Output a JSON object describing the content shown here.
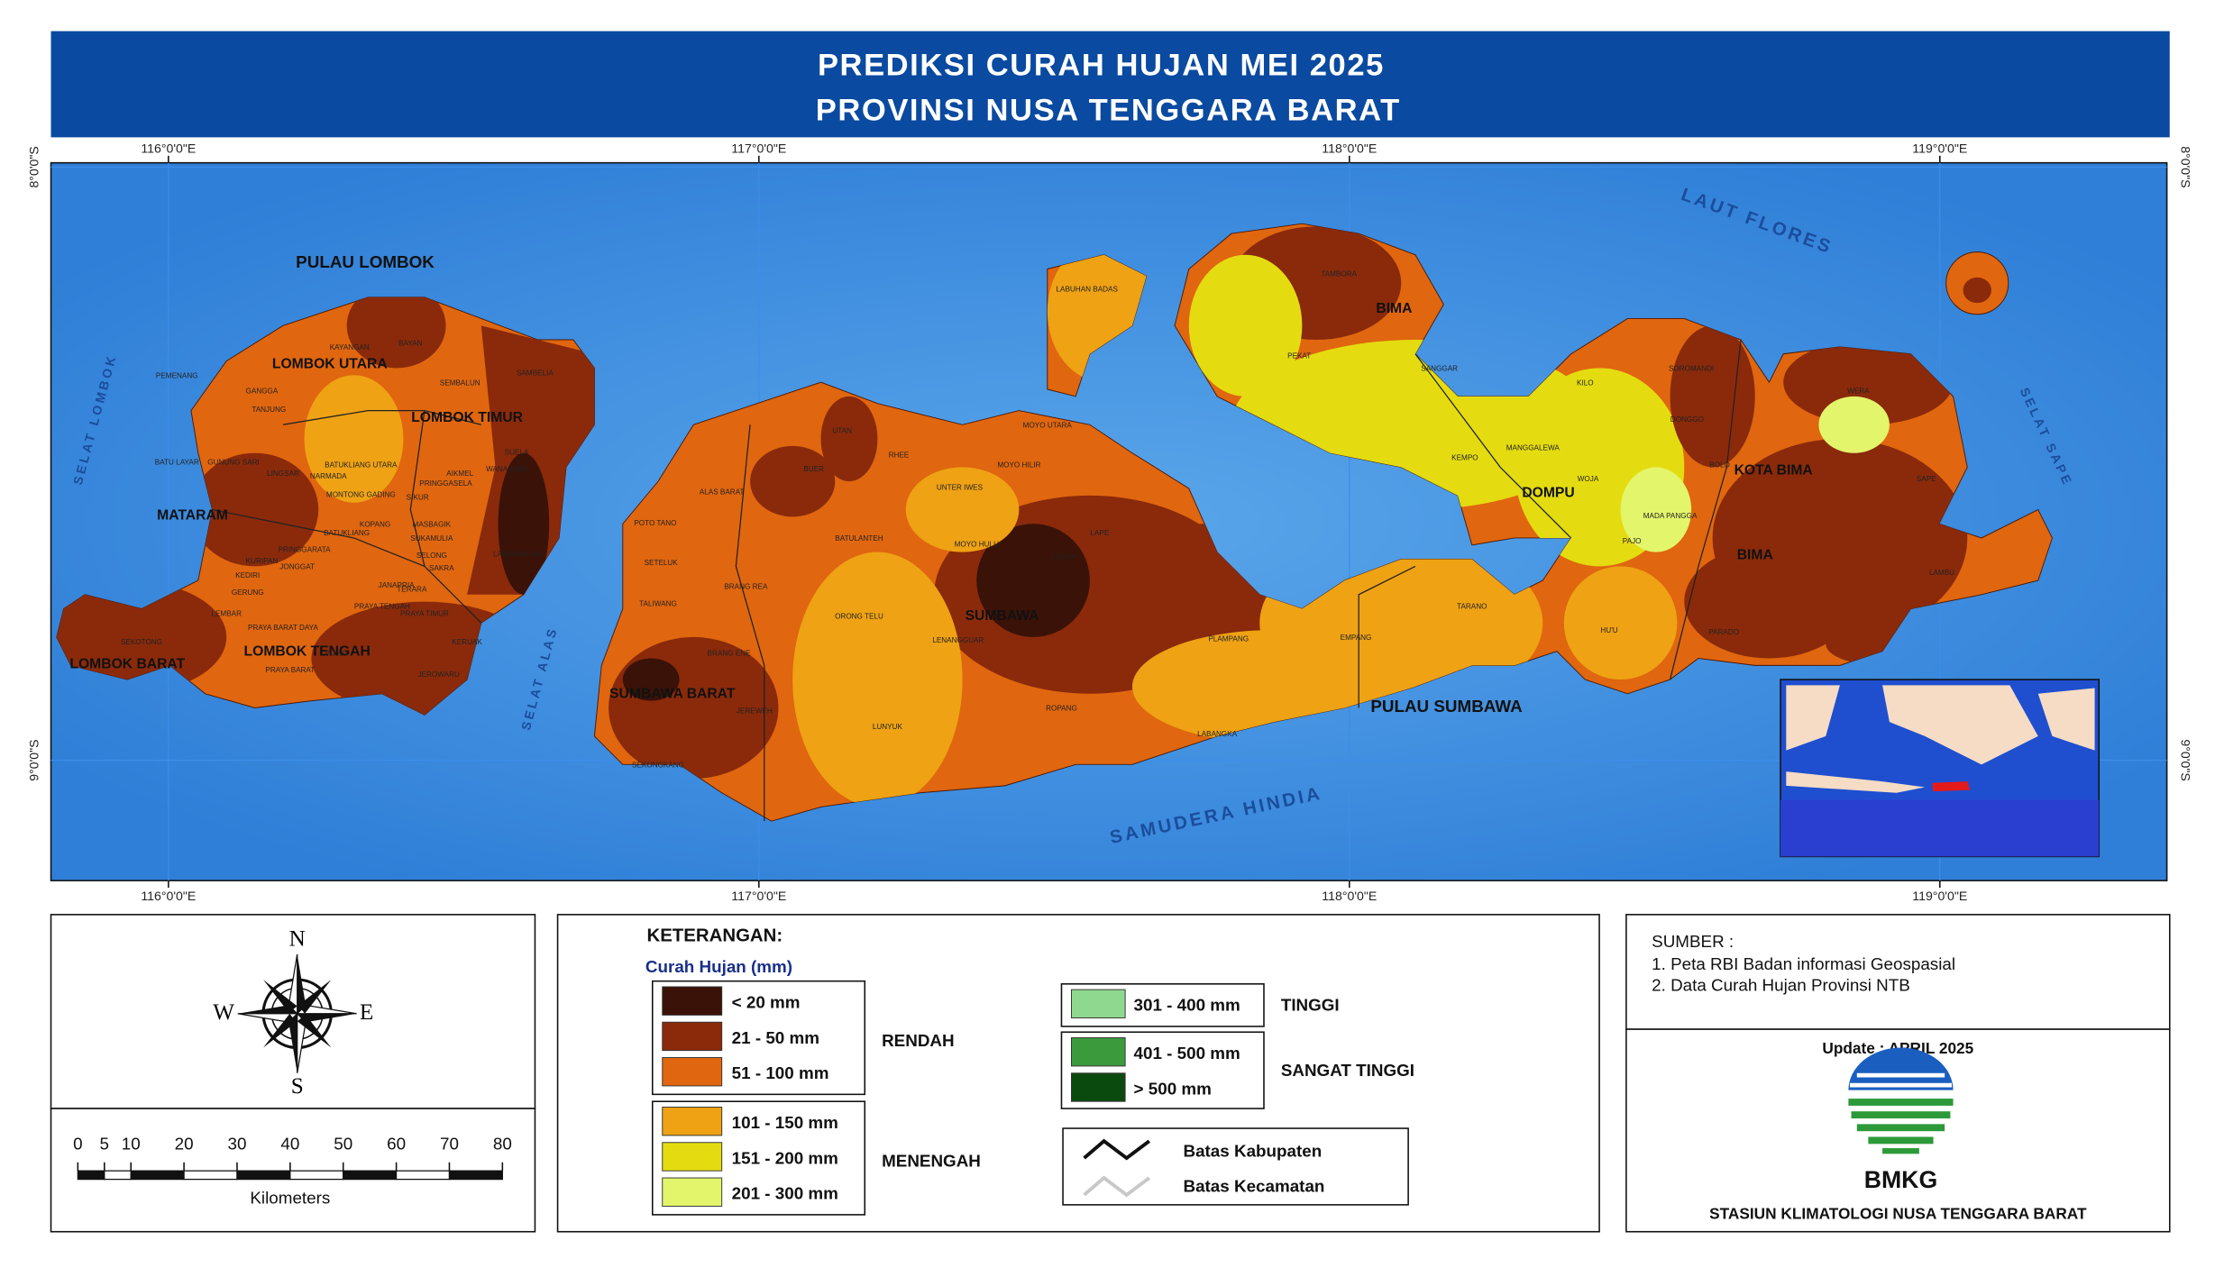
{
  "header": {
    "title_line1": "PREDIKSI CURAH HUJAN MEI 2025",
    "title_line2": "PROVINSI NUSA TENGGARA BARAT"
  },
  "map": {
    "lon_ticks": [
      {
        "value": 116,
        "label": "116°0'0\"E"
      },
      {
        "value": 117,
        "label": "117°0'0\"E"
      },
      {
        "value": 118,
        "label": "118°0'0\"E"
      },
      {
        "value": 119,
        "label": "119°0'0\"E"
      }
    ],
    "lat_ticks": [
      {
        "value": -8,
        "label": "8°0'0\"S"
      },
      {
        "value": -9,
        "label": "9°0'0\"S"
      }
    ],
    "regions": [
      "PULAU LOMBOK",
      "LOMBOK UTARA",
      "LOMBOK TIMUR",
      "MATARAM",
      "LOMBOK TENGAH",
      "LOMBOK BARAT",
      "SUMBAWA BARAT",
      "SUMBAWA",
      "BIMA",
      "DOMPU",
      "KOTA BIMA",
      "BIMA",
      "PULAU SUMBAWA"
    ],
    "seas": [
      "LAUT FLORES",
      "SAMUDERA HINDIA",
      "SELAT LOMBOK",
      "SELAT ALAS",
      "SELAT SAPE"
    ],
    "districts": [
      "PEKAT",
      "SANGGAR",
      "KILO",
      "KEMPO",
      "MANGGALEWA",
      "WOJA",
      "PAJO",
      "HU'U",
      "MADA PANGGA",
      "TAMBORA",
      "LABUHAN BADAS",
      "SOROMANDI",
      "DONGGO",
      "BOLO",
      "PARADO",
      "WERA",
      "SAPE",
      "LAMBU",
      "ORONG TELU",
      "LUNYUK",
      "ROPANG",
      "LABANGKA",
      "EMPANG",
      "TARANO",
      "PLAMPANG",
      "MOYO UTARA",
      "MOYO HILIR",
      "UNTER IWES",
      "RHEE",
      "UTAN",
      "BUER",
      "ALAS BARAT",
      "POTO TANO",
      "SETELUK",
      "TALIWANG",
      "BRANG REA",
      "BRANG ENE",
      "JEREWEH",
      "SEKONGKANG",
      "BATULANTEH",
      "MOYO HULU",
      "LENANGGUAR",
      "LOPOK",
      "LAPE",
      "KAYANGAN",
      "BAYAN",
      "GANGGA",
      "TANJUNG",
      "PEMENANG",
      "SEMBALUN",
      "SAMBELIA",
      "BATU LAYAR",
      "GUNUNG SARI",
      "LINGSAR",
      "NARMADA",
      "BATUKLIANG UTARA",
      "SUELA",
      "WANASABA",
      "AIKMEL",
      "PRINGGASELA",
      "SIKUR",
      "MONTONG GADING",
      "KOPANG",
      "MASBAGIK",
      "SUKAMULIA",
      "SELONG",
      "SAKRA",
      "LABUHAN HAJI",
      "TERARA",
      "JANAPRIA",
      "PRAYA TENGAH",
      "PRAYA TIMUR",
      "PRAYA BARAT DAYA",
      "PRAYA BARAT",
      "PUJUT",
      "JEROWARU",
      "KERUAK",
      "KURIPAN",
      "KEDIRI",
      "GERUNG",
      "LEMBAR",
      "SEKOTONG",
      "BATUKLIANG",
      "PRINGGARATA",
      "JONGGAT"
    ]
  },
  "compass": {
    "n": "N",
    "e": "E",
    "s": "S",
    "w": "W"
  },
  "scale": {
    "ticks": [
      0,
      5,
      10,
      20,
      30,
      40,
      50,
      60,
      70,
      80
    ],
    "unit": "Kilometers"
  },
  "legend": {
    "title": "KETERANGAN:",
    "subtitle": "Curah Hujan (mm)",
    "classes": [
      {
        "label": "< 20 mm",
        "color": "#3a1207"
      },
      {
        "label": "21 - 50 mm",
        "color": "#8a2a0b"
      },
      {
        "label": "51 - 100 mm",
        "color": "#e0660f"
      },
      {
        "label": "101 - 150 mm",
        "color": "#eea214"
      },
      {
        "label": "151 - 200 mm",
        "color": "#e4dc10"
      },
      {
        "label": "201 - 300 mm",
        "color": "#e3f56b"
      },
      {
        "label": "301 - 400 mm",
        "color": "#8fd890"
      },
      {
        "label": "401 - 500 mm",
        "color": "#3b9a3b"
      },
      {
        "label": "> 500 mm",
        "color": "#0b4a0e"
      }
    ],
    "groups": [
      "RENDAH",
      "MENENGAH",
      "TINGGI",
      "SANGAT TINGGI"
    ],
    "lines": [
      "Batas Kabupaten",
      "Batas Kecamatan"
    ]
  },
  "source": {
    "title": "SUMBER :",
    "items": [
      "1. Peta RBI Badan informasi Geospasial",
      "2. Data Curah Hujan Provinsi NTB"
    ]
  },
  "footer": {
    "update": "Update : APRIL 2025",
    "logo": "BMKG",
    "station": "STASIUN KLIMATOLOGI NUSA TENGGARA BARAT"
  }
}
